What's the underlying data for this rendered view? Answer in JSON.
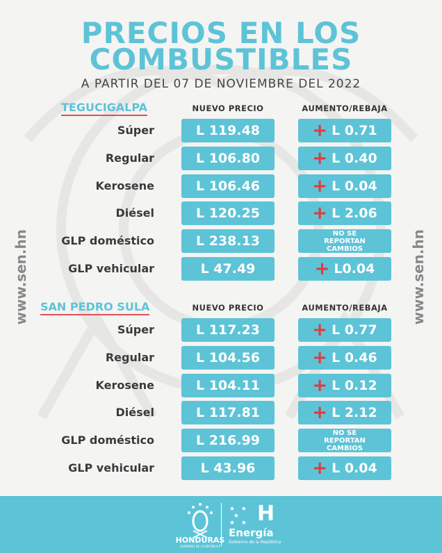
{
  "title_lines": [
    "PRECIOS EN LOS",
    "COMBUSTIBLES"
  ],
  "subtitle": "A PARTIR DEL 07 DE NOVIEMBRE DEL 2022",
  "side_text": "www.sen.hn",
  "colors": {
    "accent": "#5dc3d7",
    "increase": "#e03a3a"
  },
  "sections": [
    {
      "city": "TEGUCIGALPA",
      "col_price": "NUEVO PRECIO",
      "col_change": "AUMENTO/REBAJA",
      "rows": [
        {
          "fuel": "Súper",
          "price": "L 119.48",
          "change": "L 0.71",
          "sign": "+"
        },
        {
          "fuel": "Regular",
          "price": "L 106.80",
          "change": "L 0.40",
          "sign": "+"
        },
        {
          "fuel": "Kerosene",
          "price": "L 106.46",
          "change": "L 0.04",
          "sign": "+"
        },
        {
          "fuel": "Diésel",
          "price": "L 120.25",
          "change": "L 2.06",
          "sign": "+"
        },
        {
          "fuel": "GLP doméstico",
          "price": "L 238.13",
          "change": "NO SE REPORTAN CAMBIOS",
          "sign": ""
        },
        {
          "fuel": "GLP vehicular",
          "price": "L 47.49",
          "change": "L0.04",
          "sign": "+"
        }
      ]
    },
    {
      "city": "SAN PEDRO SULA",
      "col_price": "NUEVO PRECIO",
      "col_change": "AUMENTO/REBAJA",
      "rows": [
        {
          "fuel": "Súper",
          "price": "L 117.23",
          "change": "L 0.77",
          "sign": "+"
        },
        {
          "fuel": "Regular",
          "price": "L 104.56",
          "change": "L 0.46",
          "sign": "+"
        },
        {
          "fuel": "Kerosene",
          "price": "L 104.11",
          "change": "L 0.12",
          "sign": "+"
        },
        {
          "fuel": "Diésel",
          "price": "L 117.81",
          "change": "L 2.12",
          "sign": "+"
        },
        {
          "fuel": "GLP doméstico",
          "price": "L 216.99",
          "change": "NO SE REPORTAN CAMBIOS",
          "sign": ""
        },
        {
          "fuel": "GLP vehicular",
          "price": "L 43.96",
          "change": "L 0.04",
          "sign": "+"
        }
      ]
    }
  ],
  "footer": {
    "logo1": "HONDURAS",
    "logo1_sub": "GOBIERNO DE LA REPÚBLICA",
    "logo2": "Energía",
    "logo2_sub": "Gobierno de la República"
  }
}
